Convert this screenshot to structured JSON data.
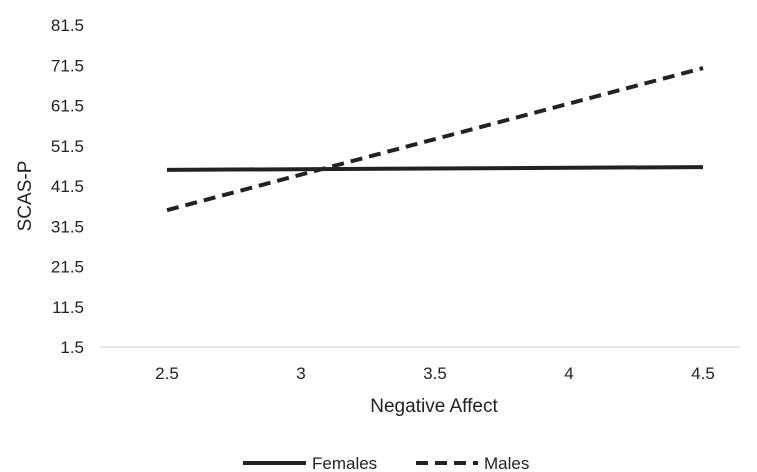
{
  "chart_data": {
    "type": "line",
    "title": "",
    "xlabel": "Negative Affect",
    "ylabel": "SCAS-P",
    "x": [
      2.5,
      4.5
    ],
    "x_ticks": [
      "2.5",
      "3",
      "3.5",
      "4",
      "4.5"
    ],
    "y_ticks": [
      "1.5",
      "11.5",
      "21.5",
      "31.5",
      "41.5",
      "51.5",
      "61.5",
      "71.5",
      "81.5"
    ],
    "xlim": [
      2.25,
      4.75
    ],
    "ylim": [
      1.5,
      81.5
    ],
    "grid": false,
    "legend_position": "bottom",
    "series": [
      {
        "name": "Females",
        "style": "solid",
        "color": "#222222",
        "values": [
          45.5,
          46.2
        ]
      },
      {
        "name": "Males",
        "style": "dashed",
        "color": "#222222",
        "values": [
          35.5,
          70.8
        ]
      }
    ]
  }
}
